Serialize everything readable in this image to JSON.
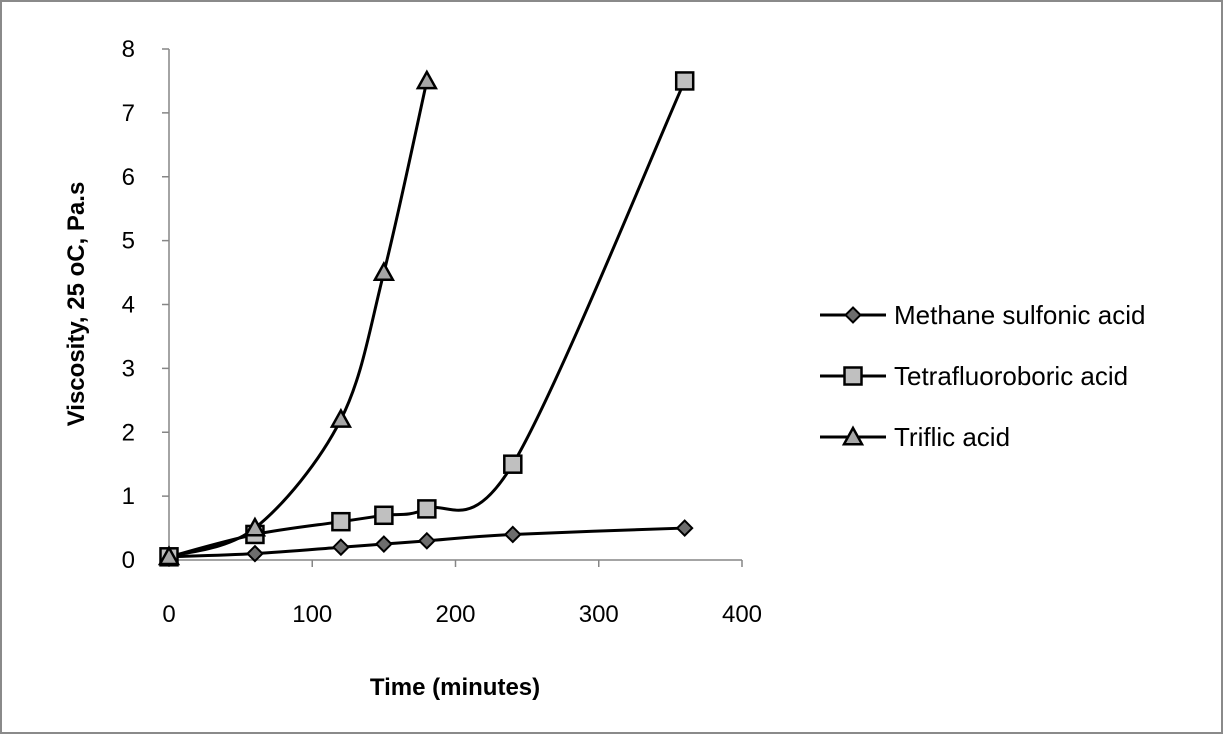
{
  "chart_data": {
    "type": "line",
    "title": "",
    "xlabel": "Time (minutes)",
    "ylabel": "Viscosity, 25 oC, Pa.s",
    "xlim": [
      0,
      400
    ],
    "ylim": [
      0,
      8
    ],
    "x_ticks": [
      0,
      100,
      200,
      300,
      400
    ],
    "y_ticks": [
      0,
      1,
      2,
      3,
      4,
      5,
      6,
      7,
      8
    ],
    "grid": false,
    "legend_position": "right",
    "series": [
      {
        "name": "Methane sulfonic acid",
        "marker": "diamond",
        "marker_color": "#6d6d6d",
        "points": [
          [
            0,
            0.05
          ],
          [
            60,
            0.1
          ],
          [
            120,
            0.2
          ],
          [
            150,
            0.25
          ],
          [
            180,
            0.3
          ],
          [
            240,
            0.4
          ],
          [
            360,
            0.5
          ]
        ]
      },
      {
        "name": "Tetrafluoroboric acid",
        "marker": "square",
        "marker_color": "#c0c0c0",
        "points": [
          [
            0,
            0.05
          ],
          [
            60,
            0.4
          ],
          [
            120,
            0.6
          ],
          [
            150,
            0.7
          ],
          [
            180,
            0.8
          ],
          [
            240,
            1.5
          ],
          [
            360,
            7.5
          ]
        ]
      },
      {
        "name": "Triflic acid",
        "marker": "triangle",
        "marker_color": "#a6a6a6",
        "points": [
          [
            0,
            0.05
          ],
          [
            60,
            0.5
          ],
          [
            120,
            2.2
          ],
          [
            150,
            4.5
          ],
          [
            180,
            7.5
          ]
        ]
      }
    ]
  }
}
